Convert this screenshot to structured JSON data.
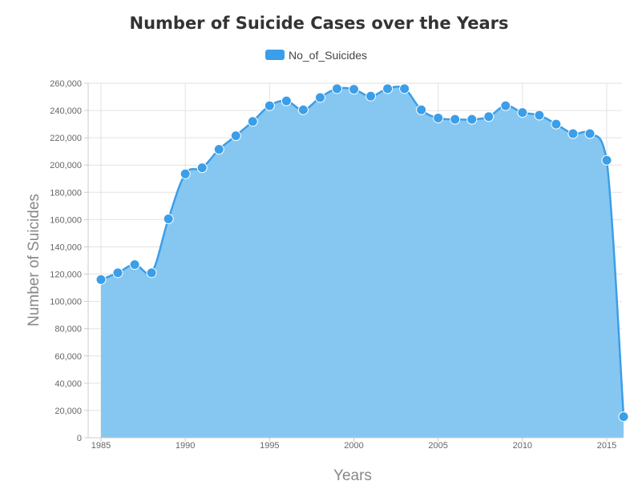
{
  "chart_data": {
    "type": "area",
    "title": "Number of Suicide Cases over the Years",
    "xlabel": "Years",
    "ylabel": "Number of Suicides",
    "ylim": [
      0,
      260000
    ],
    "xlim": [
      1985,
      2016
    ],
    "grid": true,
    "legend_position": "top-center",
    "x_ticks": [
      "1985",
      "1990",
      "1995",
      "2000",
      "2005",
      "2010",
      "2015"
    ],
    "y_ticks": [
      "0",
      "20,000",
      "40,000",
      "60,000",
      "80,000",
      "100,000",
      "120,000",
      "140,000",
      "160,000",
      "180,000",
      "200,000",
      "220,000",
      "240,000",
      "260,000"
    ],
    "series": [
      {
        "name": "No_of_Suicides",
        "color": "#3b9ee8",
        "fill": "#7fc4f0",
        "x": [
          1985,
          1986,
          1987,
          1988,
          1989,
          1990,
          1991,
          1992,
          1993,
          1994,
          1995,
          1996,
          1997,
          1998,
          1999,
          2000,
          2001,
          2002,
          2003,
          2004,
          2005,
          2006,
          2007,
          2008,
          2009,
          2010,
          2011,
          2012,
          2013,
          2014,
          2015,
          2016
        ],
        "values": [
          116000,
          121000,
          127000,
          121000,
          160500,
          193500,
          198000,
          211500,
          221500,
          232000,
          243500,
          247000,
          240500,
          249500,
          256000,
          255500,
          250500,
          256000,
          256000,
          240500,
          234500,
          233500,
          233500,
          235500,
          243500,
          238500,
          236500,
          230000,
          223000,
          223000,
          203500,
          15500
        ]
      }
    ]
  }
}
